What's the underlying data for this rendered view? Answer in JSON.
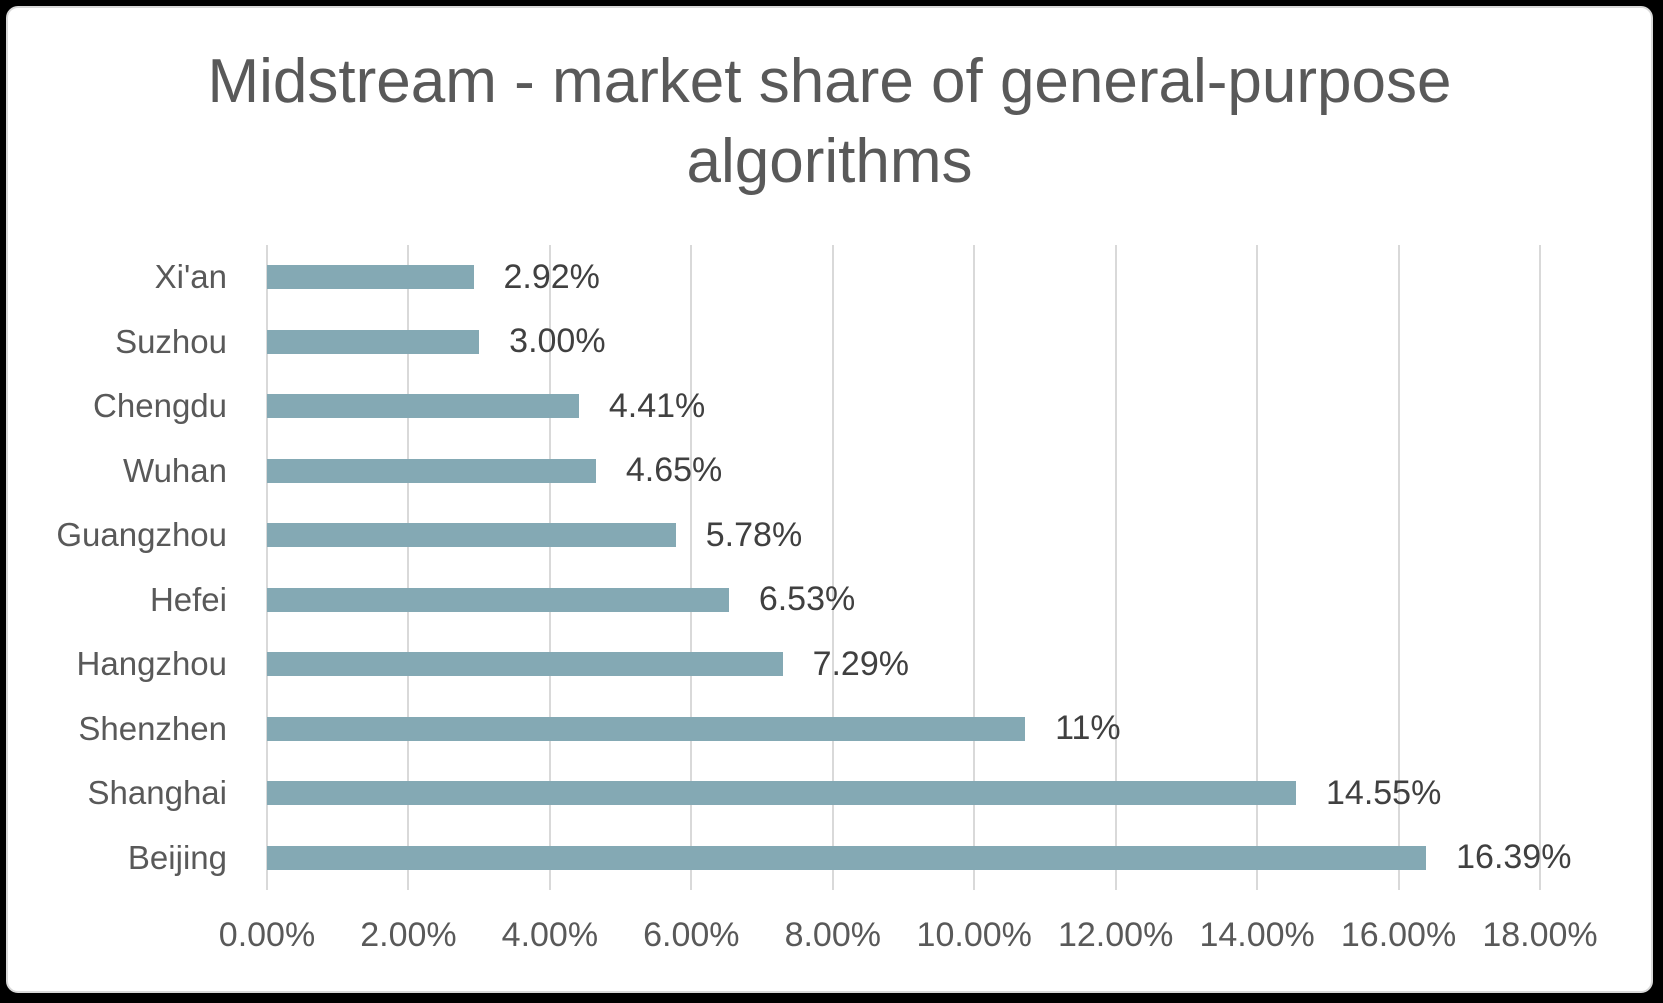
{
  "page": {
    "background": "#000000",
    "card_background": "#ffffff",
    "card_border": "#d9d9d9"
  },
  "title": {
    "full": "Midstream - market share of general-purpose algorithms",
    "line1": "Midstream - market share of general-purpose",
    "line2": "algorithms",
    "color": "#595959"
  },
  "chart_data": {
    "type": "bar",
    "orientation": "horizontal",
    "title": "Midstream - market share of general-purpose algorithms",
    "categories": [
      "Xi'an",
      "Suzhou",
      "Chengdu",
      "Wuhan",
      "Guangzhou",
      "Hefei",
      "Hangzhou",
      "Shenzhen",
      "Shanghai",
      "Beijing"
    ],
    "values": [
      2.92,
      3.0,
      4.41,
      4.65,
      5.78,
      6.53,
      7.29,
      10.72,
      14.55,
      16.39
    ],
    "data_labels": [
      "2.92%",
      "3.00%",
      "4.41%",
      "4.65%",
      "5.78%",
      "6.53%",
      "7.29%",
      "11%",
      "14.55%",
      "16.39%"
    ],
    "x_axis": {
      "min": 0,
      "max": 18,
      "step": 2,
      "ticks": [
        "0.00%",
        "2.00%",
        "4.00%",
        "6.00%",
        "8.00%",
        "10.00%",
        "12.00%",
        "14.00%",
        "16.00%",
        "18.00%"
      ]
    },
    "grid": true,
    "legend": false,
    "colors": {
      "bar": "#84a9b4",
      "gridline": "#d9d9d9",
      "data_label": "#404040",
      "category_label": "#595959",
      "tick_label": "#595959",
      "title": "#595959"
    }
  }
}
